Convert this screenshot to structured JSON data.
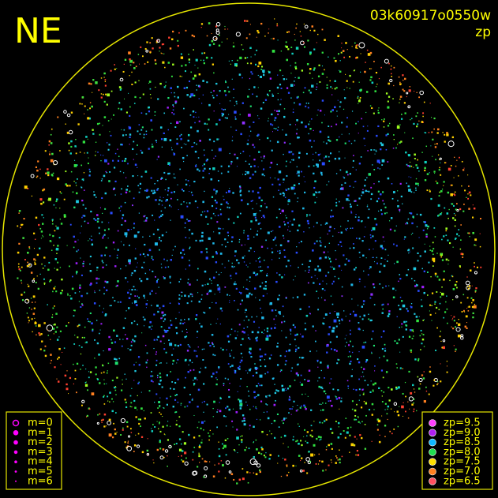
{
  "corner_label": "NE",
  "frame_id": "03k60917o0550w",
  "mode": "zp",
  "magnitude_legend": [
    "m=0",
    "m=1",
    "m=2",
    "m=3",
    "m=4",
    "m=5",
    "m=6"
  ],
  "zp_legend": [
    "zp=9.5",
    "zp=9.0",
    "zp=8.5",
    "zp=8.0",
    "zp=7.5",
    "zp=7.0",
    "zp=6.5"
  ]
}
